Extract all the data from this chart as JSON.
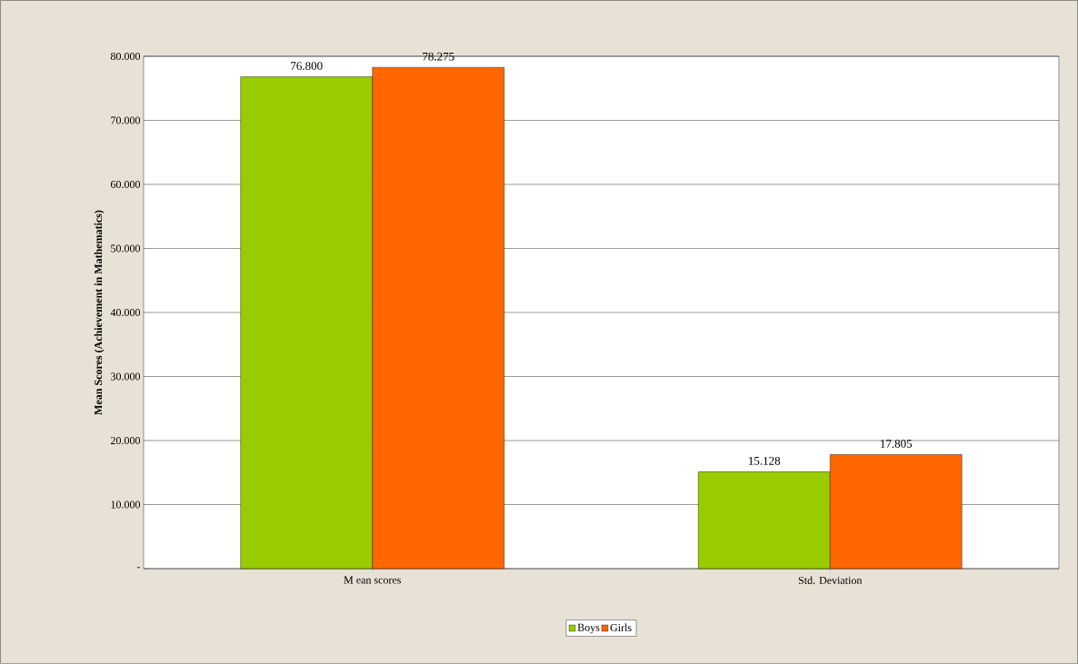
{
  "chart_data": {
    "type": "bar",
    "ylabel": "Mean Scores (Achievement in Mathematics)",
    "categories": [
      "M ean scores",
      "Std. Deviation"
    ],
    "series": [
      {
        "name": "Boys",
        "color": "#99cc00",
        "values": [
          76.8,
          15.128
        ],
        "value_labels": [
          "76.800",
          "15.128"
        ]
      },
      {
        "name": "Girls",
        "color": "#ff6600",
        "values": [
          78.275,
          17.805
        ],
        "value_labels": [
          "78.275",
          "17.805"
        ]
      }
    ],
    "ylim": [
      0,
      80
    ],
    "yticks": [
      {
        "value": 0,
        "label": "-"
      },
      {
        "value": 10,
        "label": "10.000"
      },
      {
        "value": 20,
        "label": "20.000"
      },
      {
        "value": 30,
        "label": "30.000"
      },
      {
        "value": 40,
        "label": "40.000"
      },
      {
        "value": 50,
        "label": "50.000"
      },
      {
        "value": 60,
        "label": "60.000"
      },
      {
        "value": 70,
        "label": "70.000"
      },
      {
        "value": 80,
        "label": "80.000"
      }
    ],
    "grid": "y",
    "legend": "bottom"
  }
}
